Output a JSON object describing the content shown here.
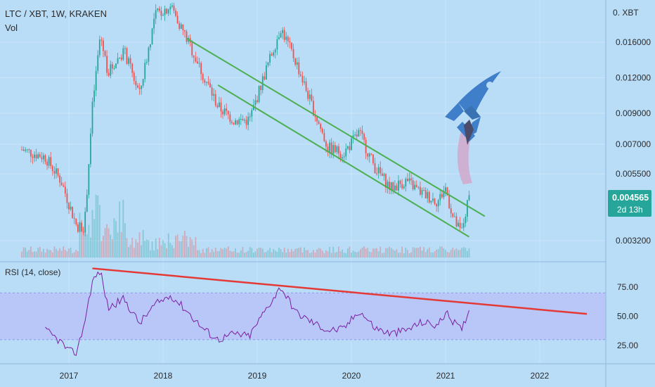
{
  "header": {
    "symbol_line": "LTC / XBT, 1W, KRAKEN",
    "volume_label": "Vol"
  },
  "rsi_panel": {
    "title": "RSI (14, close)"
  },
  "price_axis": {
    "currency_label": "0. XBT",
    "ticks": [
      "0.016000",
      "0.012000",
      "0.009000",
      "0.007000",
      "0.005500",
      "0.003200"
    ],
    "current_price": "0.004565",
    "countdown": "2d 13h"
  },
  "rsi_axis": {
    "ticks": [
      "75.00",
      "50.00",
      "25.00"
    ]
  },
  "time_axis": {
    "ticks": [
      "2017",
      "2018",
      "2019",
      "2020",
      "2021",
      "2022"
    ]
  },
  "colors": {
    "background": "#b9dcf7",
    "up_candle": "#26a69a",
    "down_candle": "#ef5350",
    "channel": "#4caf50",
    "rsi_trendline": "#e53935",
    "rsi_line": "#7b1fa2",
    "rsi_band": "#b7c3f7",
    "rocket": "#3f7fc9",
    "price_badge": "#26a69a"
  },
  "chart_data": [
    {
      "type": "candlestick",
      "title": "LTC / XBT, 1W, KRAKEN",
      "y_scale": "log",
      "ylim": [
        0.003,
        0.022
      ],
      "x_range": [
        "2016-07",
        "2022-08"
      ],
      "series": [
        {
          "name": "LTC / XBT",
          "approx_close_path": [
            {
              "x": "2016-07",
              "y": 0.0067
            },
            {
              "x": "2016-10",
              "y": 0.0063
            },
            {
              "x": "2016-12",
              "y": 0.0052
            },
            {
              "x": "2017-02",
              "y": 0.0036
            },
            {
              "x": "2017-03",
              "y": 0.0036
            },
            {
              "x": "2017-04",
              "y": 0.0095
            },
            {
              "x": "2017-05",
              "y": 0.017
            },
            {
              "x": "2017-06",
              "y": 0.0125
            },
            {
              "x": "2017-08",
              "y": 0.015
            },
            {
              "x": "2017-10",
              "y": 0.0105
            },
            {
              "x": "2017-12",
              "y": 0.02
            },
            {
              "x": "2018-02",
              "y": 0.0215
            },
            {
              "x": "2018-04",
              "y": 0.0165
            },
            {
              "x": "2018-06",
              "y": 0.0125
            },
            {
              "x": "2018-08",
              "y": 0.0095
            },
            {
              "x": "2018-10",
              "y": 0.0085
            },
            {
              "x": "2018-12",
              "y": 0.0085
            },
            {
              "x": "2019-02",
              "y": 0.0125
            },
            {
              "x": "2019-04",
              "y": 0.018
            },
            {
              "x": "2019-06",
              "y": 0.0135
            },
            {
              "x": "2019-08",
              "y": 0.0095
            },
            {
              "x": "2019-10",
              "y": 0.0068
            },
            {
              "x": "2019-12",
              "y": 0.0065
            },
            {
              "x": "2020-02",
              "y": 0.0077
            },
            {
              "x": "2020-04",
              "y": 0.0058
            },
            {
              "x": "2020-06",
              "y": 0.0049
            },
            {
              "x": "2020-08",
              "y": 0.0052
            },
            {
              "x": "2020-10",
              "y": 0.0047
            },
            {
              "x": "2020-12",
              "y": 0.0044
            },
            {
              "x": "2021-01",
              "y": 0.0049
            },
            {
              "x": "2021-02",
              "y": 0.0038
            },
            {
              "x": "2021-03",
              "y": 0.0034
            },
            {
              "x": "2021-04",
              "y": 0.004565
            }
          ]
        }
      ],
      "channel_upper": [
        {
          "x": "2018-04",
          "y": 0.0165
        },
        {
          "x": "2021-06",
          "y": 0.0039
        }
      ],
      "channel_lower": [
        {
          "x": "2018-08",
          "y": 0.0113
        },
        {
          "x": "2021-04",
          "y": 0.0033
        }
      ],
      "last_price": 0.004565
    },
    {
      "type": "line",
      "title": "RSI (14, close)",
      "ylim": [
        10,
        95
      ],
      "band": [
        30,
        70
      ],
      "series": [
        {
          "name": "RSI (14, close)",
          "points": [
            {
              "x": "2016-10",
              "y": 38
            },
            {
              "x": "2016-12",
              "y": 28
            },
            {
              "x": "2017-01",
              "y": 20
            },
            {
              "x": "2017-02",
              "y": 19
            },
            {
              "x": "2017-03",
              "y": 45
            },
            {
              "x": "2017-04",
              "y": 80
            },
            {
              "x": "2017-05",
              "y": 89
            },
            {
              "x": "2017-06",
              "y": 57
            },
            {
              "x": "2017-08",
              "y": 65
            },
            {
              "x": "2017-10",
              "y": 44
            },
            {
              "x": "2017-12",
              "y": 60
            },
            {
              "x": "2018-02",
              "y": 68
            },
            {
              "x": "2018-04",
              "y": 55
            },
            {
              "x": "2018-06",
              "y": 40
            },
            {
              "x": "2018-08",
              "y": 30
            },
            {
              "x": "2018-10",
              "y": 35
            },
            {
              "x": "2018-12",
              "y": 33
            },
            {
              "x": "2019-02",
              "y": 55
            },
            {
              "x": "2019-04",
              "y": 75
            },
            {
              "x": "2019-06",
              "y": 53
            },
            {
              "x": "2019-08",
              "y": 45
            },
            {
              "x": "2019-10",
              "y": 38
            },
            {
              "x": "2019-12",
              "y": 39
            },
            {
              "x": "2020-02",
              "y": 55
            },
            {
              "x": "2020-04",
              "y": 40
            },
            {
              "x": "2020-06",
              "y": 35
            },
            {
              "x": "2020-08",
              "y": 38
            },
            {
              "x": "2020-10",
              "y": 45
            },
            {
              "x": "2020-12",
              "y": 42
            },
            {
              "x": "2021-01",
              "y": 53
            },
            {
              "x": "2021-03",
              "y": 38
            },
            {
              "x": "2021-04",
              "y": 56
            }
          ]
        }
      ],
      "trendline": [
        {
          "x": "2017-04",
          "y": 91
        },
        {
          "x": "2022-07",
          "y": 52
        }
      ]
    }
  ]
}
